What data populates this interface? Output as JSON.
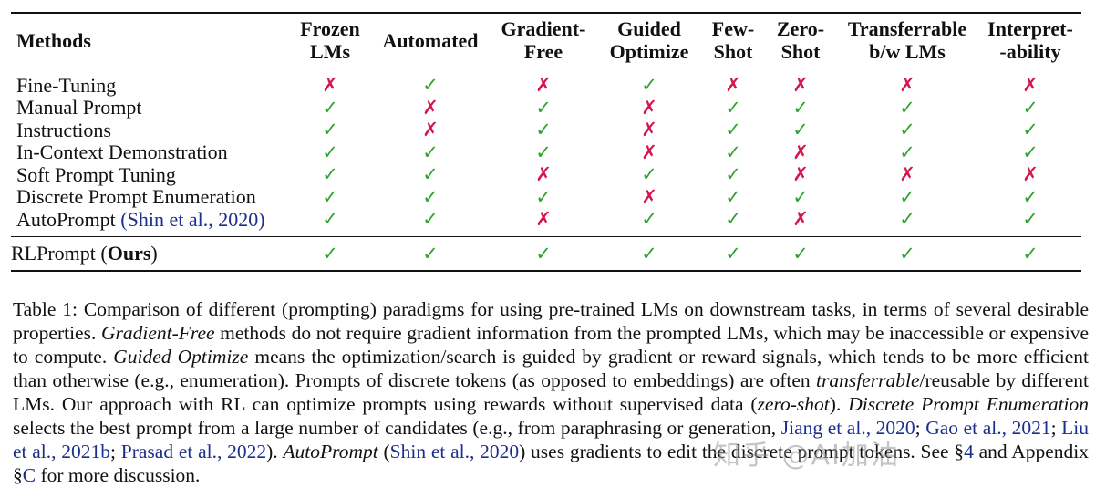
{
  "table": {
    "columns": [
      {
        "id": "methods",
        "lines": [
          "Methods"
        ]
      },
      {
        "id": "frozen",
        "lines": [
          "Frozen",
          "LMs"
        ]
      },
      {
        "id": "automated",
        "lines": [
          "Automated"
        ]
      },
      {
        "id": "gradfree",
        "lines": [
          "Gradient-",
          "Free"
        ]
      },
      {
        "id": "guided",
        "lines": [
          "Guided",
          "Optimize"
        ]
      },
      {
        "id": "fewshot",
        "lines": [
          "Few-",
          "Shot"
        ]
      },
      {
        "id": "zeroshot",
        "lines": [
          "Zero-",
          "Shot"
        ]
      },
      {
        "id": "transfer",
        "lines": [
          "Transferrable",
          "b/w LMs"
        ]
      },
      {
        "id": "interp",
        "lines": [
          "Interpret-",
          "-ability"
        ]
      }
    ],
    "check_symbol": "✓",
    "cross_symbol": "✗",
    "check_color": "#2fa32f",
    "cross_color": "#d3174a",
    "rows": [
      {
        "method": "Fine-Tuning",
        "values": [
          false,
          true,
          false,
          true,
          false,
          false,
          false,
          false
        ]
      },
      {
        "method": "Manual Prompt",
        "values": [
          true,
          false,
          true,
          false,
          true,
          true,
          true,
          true
        ]
      },
      {
        "method": "Instructions",
        "values": [
          true,
          false,
          true,
          false,
          true,
          true,
          true,
          true
        ]
      },
      {
        "method": "In-Context Demonstration",
        "values": [
          true,
          true,
          true,
          false,
          true,
          false,
          true,
          true
        ]
      },
      {
        "method": "Soft Prompt Tuning",
        "values": [
          true,
          true,
          false,
          true,
          true,
          false,
          false,
          false
        ]
      },
      {
        "method": "Discrete Prompt Enumeration",
        "values": [
          true,
          true,
          true,
          false,
          true,
          true,
          true,
          true
        ]
      },
      {
        "method": "AutoPrompt ",
        "citation": "(Shin et al., 2020)",
        "values": [
          true,
          true,
          false,
          true,
          true,
          false,
          true,
          true
        ]
      }
    ],
    "ours": {
      "name": "RLPrompt (",
      "bold": "Ours",
      "close": ")",
      "values": [
        true,
        true,
        true,
        true,
        true,
        true,
        true,
        true
      ]
    }
  },
  "caption": {
    "lines": [
      [
        {
          "t": "Table 1: Comparison of different (prompting) paradigms for using pre-trained LMs on downstream tasks, in terms of several"
        }
      ],
      [
        {
          "t": "desirable properties. "
        },
        {
          "t": "Gradient-Free",
          "s": "i"
        },
        {
          "t": " methods do not require gradient information from the prompted LMs, which may be"
        }
      ],
      [
        {
          "t": "inaccessible or expensive to compute. "
        },
        {
          "t": "Guided Optimize",
          "s": "i"
        },
        {
          "t": " means the optimization/search is guided by gradient or reward signals,"
        }
      ],
      [
        {
          "t": "which tends to be more efficient than otherwise (e.g., enumeration). Prompts of discrete tokens (as opposed to embeddings) are"
        }
      ],
      [
        {
          "t": "often "
        },
        {
          "t": "transferrable",
          "s": "i"
        },
        {
          "t": "/reusable by different LMs. Our approach with RL can optimize prompts using rewards without supervised"
        }
      ],
      [
        {
          "t": "data ("
        },
        {
          "t": "zero-shot",
          "s": "i"
        },
        {
          "t": "). "
        },
        {
          "t": "Discrete Prompt Enumeration",
          "s": "i"
        },
        {
          "t": " selects the best prompt from a large number of candidates (e.g., from paraphrasing"
        }
      ],
      [
        {
          "t": "or generation,  "
        },
        {
          "t": "Jiang et al., 2020",
          "s": "c"
        },
        {
          "t": "; "
        },
        {
          "t": "Gao et al., 2021",
          "s": "c"
        },
        {
          "t": "; "
        },
        {
          "t": "Liu et al., 2021b",
          "s": "c"
        },
        {
          "t": "; "
        },
        {
          "t": "Prasad et al., 2022",
          "s": "c"
        },
        {
          "t": "). "
        },
        {
          "t": "AutoPrompt",
          "s": "i"
        },
        {
          "t": " ("
        },
        {
          "t": "Shin et al., 2020",
          "s": "c"
        },
        {
          "t": ") uses"
        }
      ],
      [
        {
          "t": "gradients to edit the discrete prompt tokens. See §"
        },
        {
          "t": "4",
          "s": "c"
        },
        {
          "t": " and Appendix §"
        },
        {
          "t": "C",
          "s": "c"
        },
        {
          "t": " for more discussion."
        }
      ]
    ]
  },
  "watermark": "知乎 @AI加油"
}
